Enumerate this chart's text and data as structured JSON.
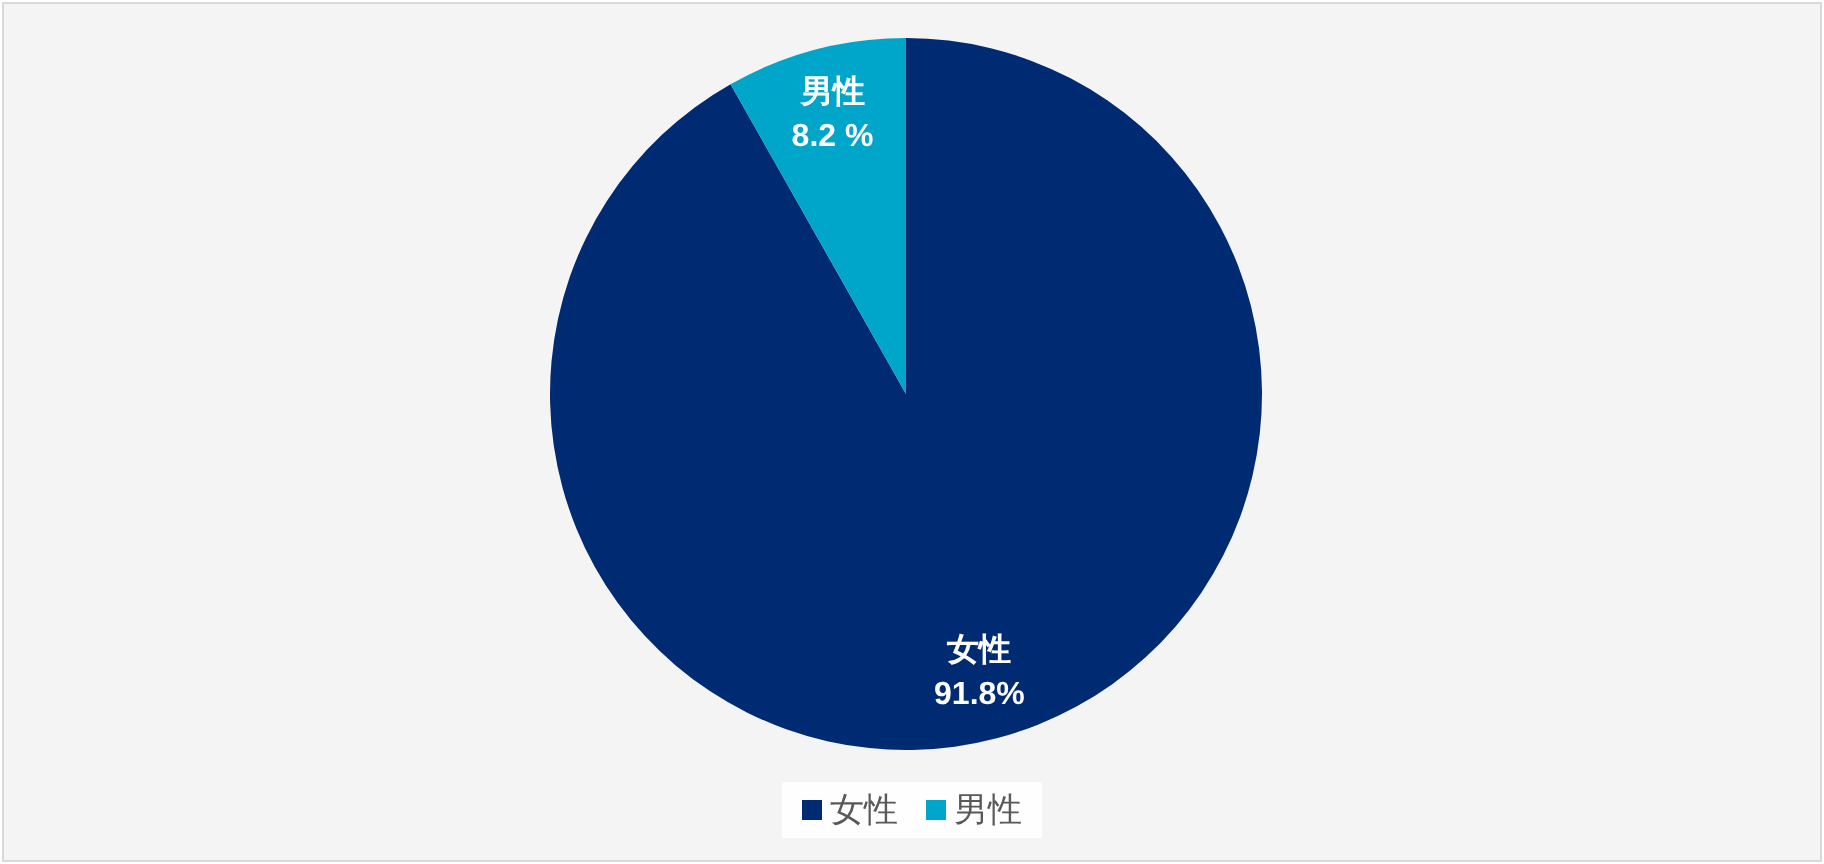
{
  "chart_data": {
    "type": "pie",
    "categories": [
      "女性",
      "男性"
    ],
    "values": [
      91.8,
      8.2
    ],
    "colors": [
      "#002b73",
      "#00a6c9"
    ],
    "value_labels": [
      "91.8%",
      "8.2 %"
    ],
    "legend": "bottom"
  }
}
